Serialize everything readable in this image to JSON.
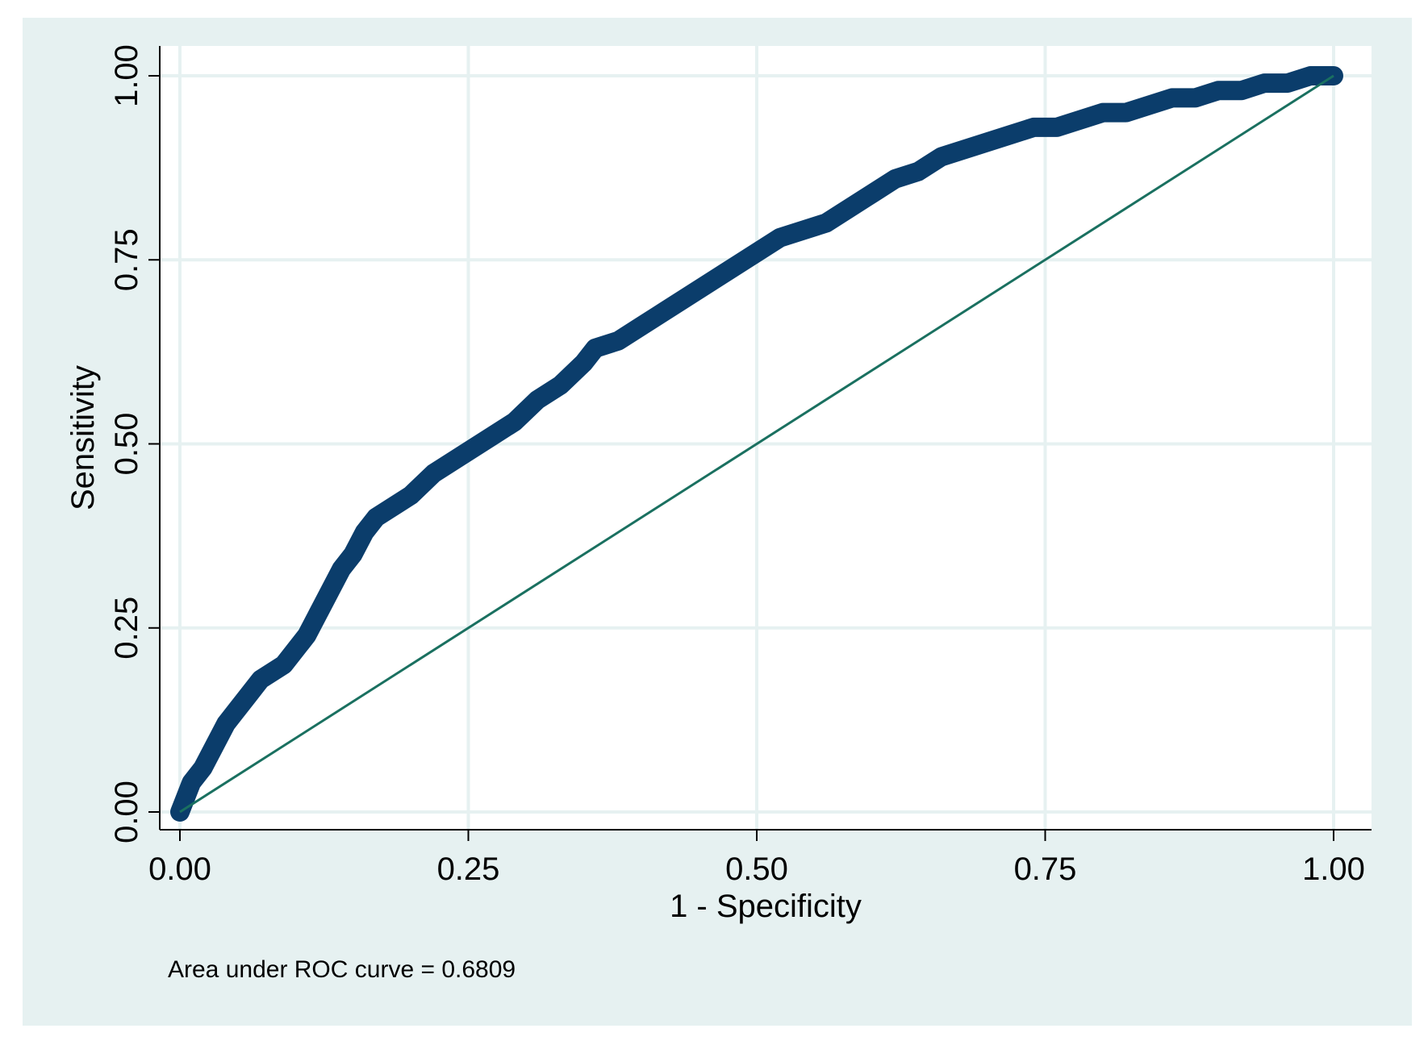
{
  "chart_data": {
    "type": "line",
    "xlabel": "1 - Specificity",
    "ylabel": "Sensitivity",
    "xlim": [
      0,
      1
    ],
    "ylim": [
      0,
      1
    ],
    "x_ticks": [
      "0.00",
      "0.25",
      "0.50",
      "0.75",
      "1.00"
    ],
    "y_ticks": [
      "0.00",
      "0.25",
      "0.50",
      "0.75",
      "1.00"
    ],
    "grid": true,
    "note": "Area under ROC curve = 0.6809",
    "series": [
      {
        "color": "#0b3d6b",
        "x": [
          0,
          0.005,
          0.01,
          0.02,
          0.03,
          0.04,
          0.05,
          0.06,
          0.07,
          0.08,
          0.09,
          0.1,
          0.11,
          0.12,
          0.13,
          0.14,
          0.15,
          0.16,
          0.17,
          0.18,
          0.2,
          0.22,
          0.24,
          0.25,
          0.27,
          0.29,
          0.31,
          0.33,
          0.35,
          0.36,
          0.38,
          0.4,
          0.42,
          0.44,
          0.46,
          0.48,
          0.5,
          0.52,
          0.54,
          0.56,
          0.58,
          0.6,
          0.62,
          0.64,
          0.66,
          0.68,
          0.7,
          0.72,
          0.74,
          0.76,
          0.78,
          0.8,
          0.82,
          0.84,
          0.86,
          0.88,
          0.9,
          0.92,
          0.94,
          0.96,
          0.98,
          1.0
        ],
        "y": [
          0,
          0.02,
          0.04,
          0.06,
          0.09,
          0.12,
          0.14,
          0.16,
          0.18,
          0.19,
          0.2,
          0.22,
          0.24,
          0.27,
          0.3,
          0.33,
          0.35,
          0.38,
          0.4,
          0.41,
          0.43,
          0.46,
          0.48,
          0.49,
          0.51,
          0.53,
          0.56,
          0.58,
          0.61,
          0.63,
          0.64,
          0.66,
          0.68,
          0.7,
          0.72,
          0.74,
          0.76,
          0.78,
          0.79,
          0.8,
          0.82,
          0.84,
          0.86,
          0.87,
          0.89,
          0.9,
          0.91,
          0.92,
          0.93,
          0.93,
          0.94,
          0.95,
          0.95,
          0.96,
          0.97,
          0.97,
          0.98,
          0.98,
          0.99,
          0.99,
          1.0,
          1.0
        ]
      },
      {
        "color": "#1a7060",
        "x": [
          0,
          1
        ],
        "y": [
          0,
          1
        ]
      }
    ]
  }
}
